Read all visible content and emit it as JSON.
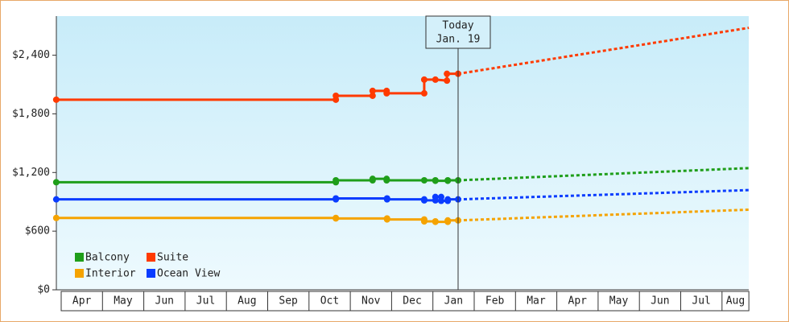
{
  "chart_data": {
    "type": "line",
    "categories": [
      "Apr",
      "May",
      "Jun",
      "Jul",
      "Aug",
      "Sep",
      "Oct",
      "Nov",
      "Dec",
      "Jan",
      "Feb",
      "Mar",
      "Apr",
      "May",
      "Jun",
      "Jul",
      "Aug"
    ],
    "xlim": [
      -0.12,
      16.65
    ],
    "ylim": [
      0,
      2800
    ],
    "yticks": [
      {
        "value": 0,
        "label": "$0"
      },
      {
        "value": 600,
        "label": "$600"
      },
      {
        "value": 1200,
        "label": "$1,200"
      },
      {
        "value": 1800,
        "label": "$1,800"
      },
      {
        "value": 2400,
        "label": "$2,400"
      }
    ],
    "annotation": {
      "lines": [
        "Today",
        "Jan. 19"
      ],
      "x": 9.61
    },
    "legend": "lower left",
    "series": [
      {
        "name": "Balcony",
        "color": "#1f9e1a",
        "x": [
          -0.12,
          6.65,
          6.65,
          7.54,
          7.54,
          7.88,
          7.88,
          8.79,
          9.06,
          9.06,
          9.36,
          9.36,
          9.61
        ],
        "values": [
          1100,
          1100,
          1120,
          1120,
          1135,
          1135,
          1120,
          1120,
          1120,
          1115,
          1115,
          1120,
          1120
        ],
        "forecast_x": [
          9.61,
          16.65
        ],
        "forecast_values": [
          1120,
          1245
        ]
      },
      {
        "name": "Suite",
        "color": "#ff3a00",
        "x": [
          -0.12,
          6.65,
          6.65,
          7.54,
          7.54,
          7.88,
          7.88,
          8.79,
          8.79,
          9.06,
          9.34,
          9.34,
          9.61
        ],
        "values": [
          1945,
          1945,
          1985,
          1985,
          2035,
          2035,
          2010,
          2010,
          2150,
          2150,
          2140,
          2210,
          2210
        ],
        "forecast_x": [
          9.61,
          16.65
        ],
        "forecast_values": [
          2210,
          2680
        ]
      },
      {
        "name": "Interior",
        "color": "#f5a300",
        "x": [
          -0.12,
          6.65,
          6.65,
          7.89,
          7.89,
          8.79,
          8.79,
          9.06,
          9.06,
          9.36,
          9.36,
          9.61
        ],
        "values": [
          735,
          735,
          730,
          730,
          720,
          720,
          700,
          700,
          695,
          695,
          710,
          710
        ],
        "forecast_x": [
          9.61,
          16.65
        ],
        "forecast_values": [
          710,
          820
        ]
      },
      {
        "name": "Ocean View",
        "color": "#0a3cff",
        "x": [
          -0.12,
          6.65,
          6.65,
          7.89,
          7.89,
          8.79,
          8.79,
          9.06,
          9.06,
          9.2,
          9.2,
          9.36,
          9.36,
          9.61
        ],
        "values": [
          925,
          925,
          935,
          935,
          925,
          925,
          915,
          915,
          950,
          950,
          910,
          910,
          925,
          925
        ],
        "forecast_x": [
          9.61,
          16.65
        ],
        "forecast_values": [
          925,
          1020
        ]
      }
    ]
  }
}
